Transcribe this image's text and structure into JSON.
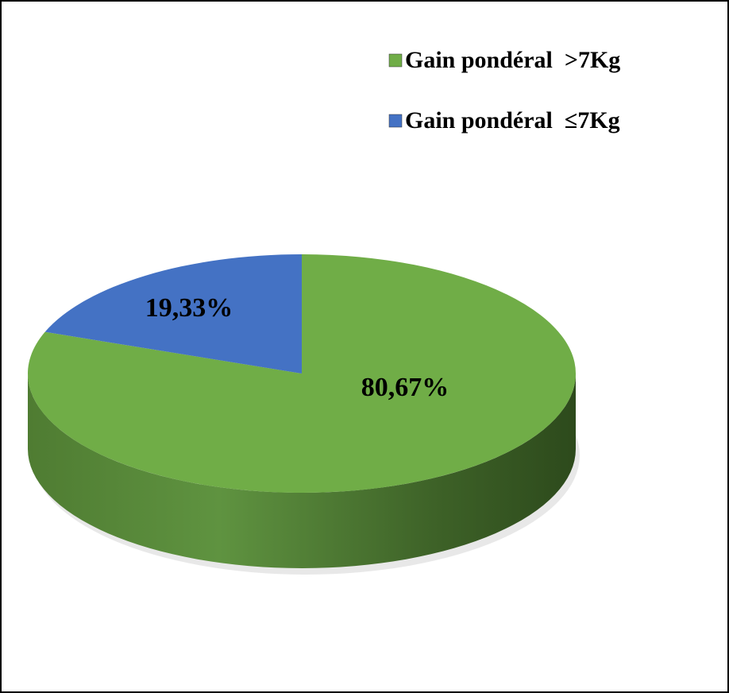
{
  "chart_data": {
    "type": "pie",
    "categories": [
      "Gain pondéral  >7Kg",
      "Gain pondéral  ≤7Kg"
    ],
    "values": [
      80.67,
      19.33
    ],
    "value_labels": [
      "80,67%",
      "19,33%"
    ],
    "colors": [
      "#70ad47",
      "#4472c4"
    ],
    "legend": "top-right"
  }
}
